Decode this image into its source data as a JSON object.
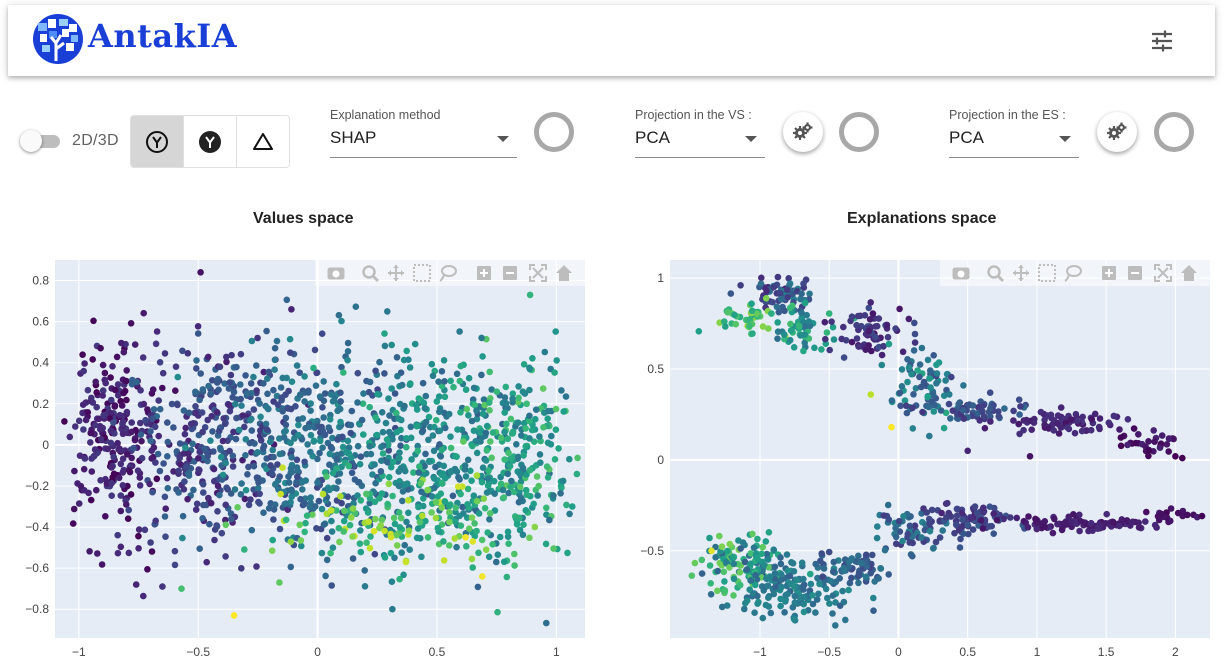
{
  "app": {
    "title": "AntakIA"
  },
  "toolbar": {
    "dim_switch_label": "2D/3D",
    "explanation_method": {
      "label": "Explanation method",
      "value": "SHAP"
    },
    "vs_projection": {
      "label": "Projection in the VS :",
      "value": "PCA"
    },
    "es_projection": {
      "label": "Projection in the ES :",
      "value": "PCA"
    }
  },
  "colors": {
    "brand": "#1a3fd6",
    "plot_bg": "#e5ecf6"
  },
  "charts": [
    {
      "title": "Values space",
      "chart_data": {
        "type": "scatter",
        "xlim": [
          -1.1,
          1.12
        ],
        "ylim": [
          -0.94,
          0.9
        ],
        "xticks": [
          -1,
          -0.5,
          0,
          0.5,
          1
        ],
        "yticks": [
          -0.8,
          -0.6,
          -0.4,
          -0.2,
          0,
          0.2,
          0.4,
          0.6,
          0.8
        ],
        "grid": true,
        "colorscale": "viridis",
        "clusters": [
          {
            "cx": -0.85,
            "cy": 0.05,
            "sx": 0.09,
            "sy": 0.24,
            "n": 260,
            "c": [
              0.0,
              0.18
            ]
          },
          {
            "cx": -0.45,
            "cy": 0.0,
            "sx": 0.17,
            "sy": 0.24,
            "n": 330,
            "c": [
              0.08,
              0.35
            ]
          },
          {
            "cx": 0.0,
            "cy": -0.02,
            "sx": 0.2,
            "sy": 0.24,
            "n": 380,
            "c": [
              0.2,
              0.5
            ]
          },
          {
            "cx": 0.48,
            "cy": -0.05,
            "sx": 0.2,
            "sy": 0.25,
            "n": 360,
            "c": [
              0.3,
              0.65
            ]
          },
          {
            "cx": 0.85,
            "cy": -0.05,
            "sx": 0.12,
            "sy": 0.24,
            "n": 230,
            "c": [
              0.35,
              0.75
            ]
          },
          {
            "cx": 0.3,
            "cy": -0.38,
            "sx": 0.28,
            "sy": 0.1,
            "n": 130,
            "c": [
              0.55,
              0.95
            ]
          }
        ],
        "points": [
          {
            "x": -0.49,
            "y": 0.84,
            "c": 0.05
          },
          {
            "x": -0.35,
            "y": -0.83,
            "c": 1.0
          },
          {
            "x": -0.57,
            "y": -0.7,
            "c": 0.7
          },
          {
            "x": 0.89,
            "y": 0.73,
            "c": 0.65
          },
          {
            "x": 0.69,
            "y": -0.64,
            "c": 0.98
          },
          {
            "x": -0.16,
            "y": -0.67,
            "c": 0.75
          },
          {
            "x": -0.65,
            "y": -0.69,
            "c": 0.15
          },
          {
            "x": -0.76,
            "y": -0.68,
            "c": 0.1
          },
          {
            "x": -0.11,
            "y": 0.66,
            "c": 0.1
          },
          {
            "x": 0.65,
            "y": -0.47,
            "c": 0.95
          },
          {
            "x": 0.62,
            "y": -0.45,
            "c": 0.98
          },
          {
            "x": 0.37,
            "y": -0.57,
            "c": 0.92
          }
        ]
      }
    },
    {
      "title": "Explanations space",
      "chart_data": {
        "type": "scatter",
        "xlim": [
          -1.65,
          2.25
        ],
        "ylim": [
          -0.98,
          1.1
        ],
        "xticks": [
          -1,
          -0.5,
          0,
          0.5,
          1,
          1.5,
          2
        ],
        "yticks": [
          -0.5,
          0,
          0.5,
          1
        ],
        "grid": true,
        "colorscale": "viridis",
        "clusters": [
          {
            "cx": -0.85,
            "cy": 0.9,
            "sx": 0.12,
            "sy": 0.05,
            "n": 70,
            "c": [
              0.1,
              0.45
            ]
          },
          {
            "cx": -1.1,
            "cy": 0.78,
            "sx": 0.12,
            "sy": 0.05,
            "n": 40,
            "c": [
              0.55,
              0.85
            ]
          },
          {
            "cx": -0.65,
            "cy": 0.72,
            "sx": 0.12,
            "sy": 0.06,
            "n": 50,
            "c": [
              0.35,
              0.7
            ]
          },
          {
            "cx": -0.2,
            "cy": 0.7,
            "sx": 0.14,
            "sy": 0.06,
            "n": 70,
            "c": [
              0.05,
              0.25
            ]
          },
          {
            "cx": 0.2,
            "cy": 0.4,
            "sx": 0.13,
            "sy": 0.1,
            "n": 80,
            "c": [
              0.2,
              0.6
            ]
          },
          {
            "cx": 0.55,
            "cy": 0.27,
            "sx": 0.2,
            "sy": 0.03,
            "n": 60,
            "c": [
              0.15,
              0.35
            ]
          },
          {
            "cx": 1.25,
            "cy": 0.2,
            "sx": 0.22,
            "sy": 0.03,
            "n": 70,
            "c": [
              0.05,
              0.15
            ]
          },
          {
            "cx": 1.8,
            "cy": 0.1,
            "sx": 0.15,
            "sy": 0.03,
            "n": 30,
            "c": [
              0.0,
              0.1
            ]
          },
          {
            "cx": -1.1,
            "cy": -0.6,
            "sx": 0.15,
            "sy": 0.08,
            "n": 130,
            "c": [
              0.3,
              0.8
            ]
          },
          {
            "cx": -0.75,
            "cy": -0.72,
            "sx": 0.18,
            "sy": 0.08,
            "n": 140,
            "c": [
              0.3,
              0.5
            ]
          },
          {
            "cx": -0.3,
            "cy": -0.6,
            "sx": 0.12,
            "sy": 0.05,
            "n": 60,
            "c": [
              0.2,
              0.4
            ]
          },
          {
            "cx": 0.1,
            "cy": -0.38,
            "sx": 0.12,
            "sy": 0.06,
            "n": 60,
            "c": [
              0.15,
              0.45
            ]
          },
          {
            "cx": 0.5,
            "cy": -0.33,
            "sx": 0.15,
            "sy": 0.04,
            "n": 80,
            "c": [
              0.1,
              0.3
            ]
          },
          {
            "cx": 1.3,
            "cy": -0.35,
            "sx": 0.28,
            "sy": 0.02,
            "n": 100,
            "c": [
              0.05,
              0.12
            ]
          },
          {
            "cx": 1.95,
            "cy": -0.3,
            "sx": 0.1,
            "sy": 0.02,
            "n": 20,
            "c": [
              0.0,
              0.08
            ]
          }
        ],
        "points": [
          {
            "x": -0.05,
            "y": 0.18,
            "c": 1.0
          },
          {
            "x": -0.2,
            "y": 0.36,
            "c": 0.9
          },
          {
            "x": 0.5,
            "y": 0.05,
            "c": 0.1
          },
          {
            "x": 0.95,
            "y": 0.02,
            "c": 0.05
          },
          {
            "x": 2.05,
            "y": 0.01,
            "c": 0.0
          },
          {
            "x": 2.0,
            "y": 0.02,
            "c": 0.0
          },
          {
            "x": 1.85,
            "y": 0.1,
            "c": 0.05
          },
          {
            "x": 0.1,
            "y": -0.53,
            "c": 0.3
          },
          {
            "x": -0.18,
            "y": -0.83,
            "c": 0.3
          },
          {
            "x": -0.6,
            "y": -0.84,
            "c": 0.4
          },
          {
            "x": -1.42,
            "y": -0.55,
            "c": 0.7
          },
          {
            "x": -1.35,
            "y": -0.5,
            "c": 0.95
          }
        ]
      }
    }
  ]
}
